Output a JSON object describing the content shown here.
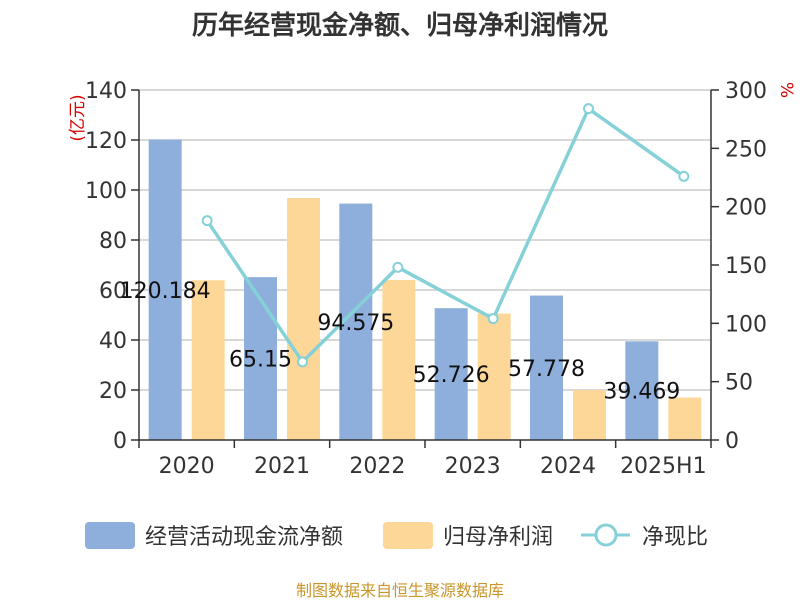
{
  "title": "历年经营现金净额、归母净利润情况",
  "source": "制图数据来自恒生聚源数据库",
  "left_unit": "(亿元)",
  "right_unit": "%",
  "colors": {
    "bar1": "#8eaedb",
    "bar2": "#fdd797",
    "line": "#86d1d7"
  },
  "chart_data": {
    "type": "bar",
    "categories": [
      "2020",
      "2021",
      "2022",
      "2023",
      "2024",
      "2025H1"
    ],
    "ylim": [
      0,
      140
    ],
    "yticks": [
      "0",
      "20",
      "40",
      "60",
      "80",
      "100",
      "120",
      "140"
    ],
    "y2lim": [
      0,
      300
    ],
    "y2ticks": [
      "0",
      "50",
      "100",
      "150",
      "200",
      "250",
      "300"
    ],
    "series": [
      {
        "name": "经营活动现金流净额",
        "kind": "bar",
        "axis": "left",
        "values": [
          120.184,
          65.15,
          94.575,
          52.726,
          57.778,
          39.469
        ],
        "labels": [
          "120.184",
          "65.15",
          "94.575",
          "52.726",
          "57.778",
          "39.469"
        ]
      },
      {
        "name": "归母净利润",
        "kind": "bar",
        "axis": "left",
        "values": [
          63.9,
          96.8,
          64.0,
          50.6,
          20.0,
          17.0
        ]
      },
      {
        "name": "净现比",
        "kind": "line",
        "axis": "right",
        "values": [
          188,
          67,
          148,
          104,
          284,
          226
        ]
      }
    ],
    "legend_position": "bottom",
    "grid": true
  }
}
